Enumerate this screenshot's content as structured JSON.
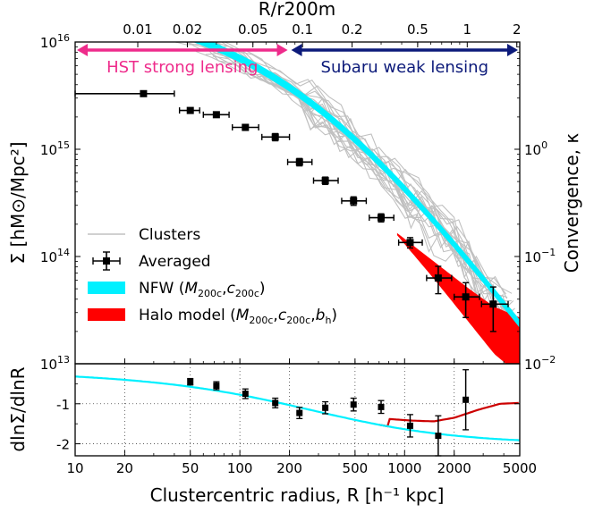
{
  "chart_data": [
    {
      "type": "line",
      "panel": "main",
      "xscale": "log",
      "yscale": "log",
      "xlim": [
        10,
        5000
      ],
      "ylim": [
        10000000000000.0,
        1e+16
      ],
      "xlabel": "Clustercentric radius, R [h⁻¹ kpc]",
      "ylabel": "Σ [hM⊙/Mpc²]",
      "ylabel_right": "Convergence, κ",
      "top_axis_label": "R/r200m",
      "top_ticks": [
        "0.01",
        "0.02",
        "0.05",
        "0.1",
        "0.2",
        "0.5",
        "1",
        "2"
      ],
      "top_tick_values": [
        0.01,
        0.02,
        0.05,
        0.1,
        0.2,
        0.5,
        1,
        2
      ],
      "r200m": 2400,
      "x_ticks": [
        "10",
        "20",
        "50",
        "100",
        "200",
        "500",
        "1000",
        "2000",
        "5000"
      ],
      "x_tick_values": [
        10,
        20,
        50,
        100,
        200,
        500,
        1000,
        2000,
        5000
      ],
      "y_tick_exponents": [
        "13",
        "14",
        "15",
        "16"
      ],
      "y_tick_values": [
        10000000000000.0,
        100000000000000.0,
        1000000000000000.0,
        1e+16
      ],
      "kappa_ticks": [
        {
          "mantissa": "10",
          "exp": "0",
          "value": 1.0,
          "sigma": 1000000000000000.0
        },
        {
          "mantissa": "10",
          "exp": "−1",
          "value": 0.1,
          "sigma": 100000000000000.0
        },
        {
          "mantissa": "10",
          "exp": "−2",
          "value": 0.01,
          "sigma": 10000000000000.0
        }
      ],
      "kappa_sigma_ratio": 3.0,
      "annotations": {
        "hst": "HST strong lensing",
        "hst_range": [
          10,
          200
        ],
        "subaru": "Subaru weak lensing",
        "subaru_range": [
          200,
          5000
        ],
        "hst_color": "#ee2b8b",
        "subaru_color": "#0c1a7a"
      },
      "averaged": [
        {
          "x": 26,
          "y": 3300000000000000.0,
          "xerr": [
            16,
            14
          ],
          "yerr": [
            100000000000000.0,
            100000000000000.0
          ]
        },
        {
          "x": 50,
          "y": 2300000000000000.0,
          "xerr": [
            7,
            7
          ],
          "yerr": [
            100000000000000.0,
            100000000000000.0
          ]
        },
        {
          "x": 72,
          "y": 2100000000000000.0,
          "xerr": [
            12,
            14
          ],
          "yerr": [
            100000000000000.0,
            100000000000000.0
          ]
        },
        {
          "x": 108,
          "y": 1600000000000000.0,
          "xerr": [
            18,
            22
          ],
          "yerr": [
            100000000000000.0,
            100000000000000.0
          ]
        },
        {
          "x": 164,
          "y": 1300000000000000.0,
          "xerr": [
            28,
            36
          ],
          "yerr": [
            100000000000000.0,
            100000000000000.0
          ]
        },
        {
          "x": 230,
          "y": 760000000000000.0,
          "xerr": [
            35,
            44
          ],
          "yerr": [
            60000000000000.0,
            60000000000000.0
          ]
        },
        {
          "x": 330,
          "y": 510000000000000.0,
          "xerr": [
            50,
            65
          ],
          "yerr": [
            40000000000000.0,
            40000000000000.0
          ]
        },
        {
          "x": 490,
          "y": 330000000000000.0,
          "xerr": [
            75,
            95
          ],
          "yerr": [
            30000000000000.0,
            30000000000000.0
          ]
        },
        {
          "x": 720,
          "y": 230000000000000.0,
          "xerr": [
            110,
            140
          ],
          "yerr": [
            20000000000000.0,
            20000000000000.0
          ]
        },
        {
          "x": 1080,
          "y": 135000000000000.0,
          "xerr": [
            160,
            200
          ],
          "yerr": [
            15000000000000.0,
            15000000000000.0
          ]
        },
        {
          "x": 1600,
          "y": 63000000000000.0,
          "xerr": [
            240,
            330
          ],
          "yerr": [
            18000000000000.0,
            18000000000000.0
          ]
        },
        {
          "x": 2350,
          "y": 42000000000000.0,
          "xerr": [
            350,
            500
          ],
          "yerr": [
            15000000000000.0,
            15000000000000.0
          ]
        },
        {
          "x": 3450,
          "y": 36000000000000.0,
          "xerr": [
            520,
            800
          ],
          "yerr": [
            16000000000000.0,
            16000000000000.0
          ]
        }
      ],
      "nfw_model": {
        "rs": 300,
        "c1": 2390000000000000.0,
        "band_frac": 0.09,
        "color": "#00f0ff"
      },
      "halo_model": {
        "color": "#ff0000",
        "start_x": 900,
        "band_center": [
          [
            900,
            162000000000000.0
          ],
          [
            1500,
            75000000000000.0
          ],
          [
            2500,
            34000000000000.0
          ],
          [
            3500,
            20500000000000.0
          ],
          [
            5000,
            14500000000000.0
          ]
        ],
        "band_halfwidth_dex": [
          [
            900,
            0.01
          ],
          [
            1500,
            0.08
          ],
          [
            2500,
            0.16
          ],
          [
            3500,
            0.22
          ],
          [
            5000,
            0.27
          ]
        ]
      },
      "clusters_color": "#c0c0c0",
      "legend": [
        {
          "label": "Clusters",
          "kind": "line",
          "color": "#c0c0c0"
        },
        {
          "label": "Averaged",
          "kind": "errorbar",
          "color": "#000000"
        },
        {
          "label": "NFW (",
          "sub1": "M",
          "sub1s": "200c",
          "sep": ",",
          "sub2": "c",
          "sub2s": "200c",
          "close": ")",
          "kind": "patch",
          "color": "#00f0ff"
        },
        {
          "label": "Halo model (",
          "sub1": "M",
          "sub1s": "200c",
          "sep": ",",
          "sub2": "c",
          "sub2s": "200c",
          "sep2": ",",
          "sub3": "b",
          "sub3s": "h",
          "close": ")",
          "kind": "patch",
          "color": "#ff0000"
        }
      ]
    },
    {
      "type": "line",
      "panel": "slope",
      "xscale": "log",
      "xlim": [
        10,
        5000
      ],
      "ylim": [
        -2.3,
        0
      ],
      "ylabel": "dlnΣ/dlnR",
      "y_ticks": [
        "-1",
        "-2"
      ],
      "y_tick_values": [
        -1,
        -2
      ],
      "points": [
        {
          "x": 50,
          "y": -0.45,
          "yerr": 0.08
        },
        {
          "x": 72,
          "y": -0.55,
          "yerr": 0.1
        },
        {
          "x": 108,
          "y": -0.75,
          "yerr": 0.12
        },
        {
          "x": 164,
          "y": -0.98,
          "yerr": 0.12
        },
        {
          "x": 230,
          "y": -1.23,
          "yerr": 0.14
        },
        {
          "x": 330,
          "y": -1.1,
          "yerr": 0.15
        },
        {
          "x": 490,
          "y": -1.02,
          "yerr": 0.16
        },
        {
          "x": 720,
          "y": -1.08,
          "yerr": 0.16
        },
        {
          "x": 1080,
          "y": -1.55,
          "yerr": 0.28
        },
        {
          "x": 1600,
          "y": -1.8,
          "yerr": 0.5
        },
        {
          "x": 2350,
          "y": -0.9,
          "yerr": 0.75
        }
      ],
      "nfw_slope_color": "#00f0ff",
      "halo_slope": [
        [
          800,
          -1.38
        ],
        [
          1100,
          -1.42
        ],
        [
          1500,
          -1.44
        ],
        [
          2000,
          -1.35
        ],
        [
          2800,
          -1.15
        ],
        [
          3800,
          -1.0
        ],
        [
          5000,
          -0.98
        ]
      ],
      "halo_slope_color": "#cc0000"
    }
  ]
}
